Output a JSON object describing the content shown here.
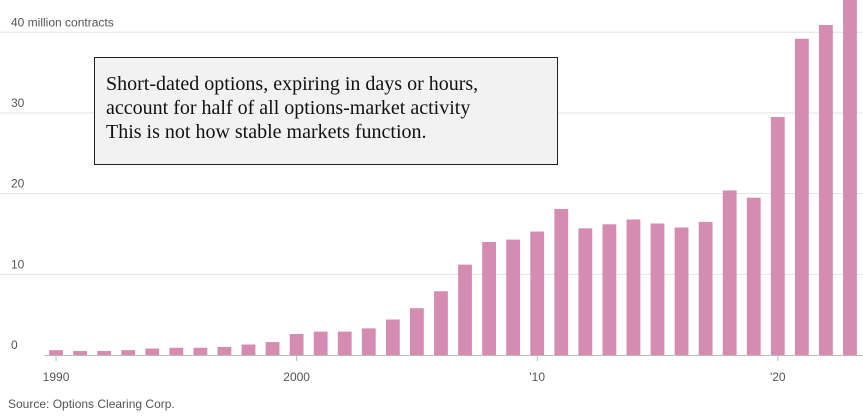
{
  "chart_data": {
    "type": "bar",
    "unit_label": "40 million contracts",
    "categories": [
      "1990",
      "1991",
      "1992",
      "1993",
      "1994",
      "1995",
      "1996",
      "1997",
      "1998",
      "1999",
      "2000",
      "2001",
      "2002",
      "2003",
      "2004",
      "2005",
      "2006",
      "2007",
      "2008",
      "2009",
      "2010",
      "2011",
      "2012",
      "2013",
      "2014",
      "2015",
      "2016",
      "2017",
      "2018",
      "2019",
      "2020",
      "2021",
      "2022",
      "2023"
    ],
    "values": [
      0.6,
      0.5,
      0.5,
      0.6,
      0.8,
      0.9,
      0.9,
      1.0,
      1.3,
      1.6,
      2.6,
      2.9,
      2.9,
      3.3,
      4.4,
      5.8,
      7.9,
      11.2,
      14.0,
      14.3,
      15.3,
      18.1,
      15.7,
      16.2,
      16.8,
      16.3,
      15.8,
      16.5,
      20.4,
      19.5,
      29.5,
      39.2,
      40.9,
      44.0
    ],
    "yticks": [
      0,
      10,
      20,
      30
    ],
    "yticks_labels": [
      "0",
      "10",
      "20",
      "30"
    ],
    "xticks": [
      "1990",
      "2000",
      "2010",
      "2020"
    ],
    "xticks_labels": [
      "1990",
      "2000",
      "'10",
      "'20"
    ],
    "ylim": [
      0,
      44
    ],
    "grid": true,
    "bar_color": "#d48cb0",
    "grid_color": "#e3e3e3",
    "axis_color": "#bbbbbb"
  },
  "callout": {
    "lines": [
      "Short-dated options, expiring in days or hours,",
      "account for half of all options-market activity",
      "This is not how stable markets function."
    ]
  },
  "source": "Source: Options Clearing Corp."
}
